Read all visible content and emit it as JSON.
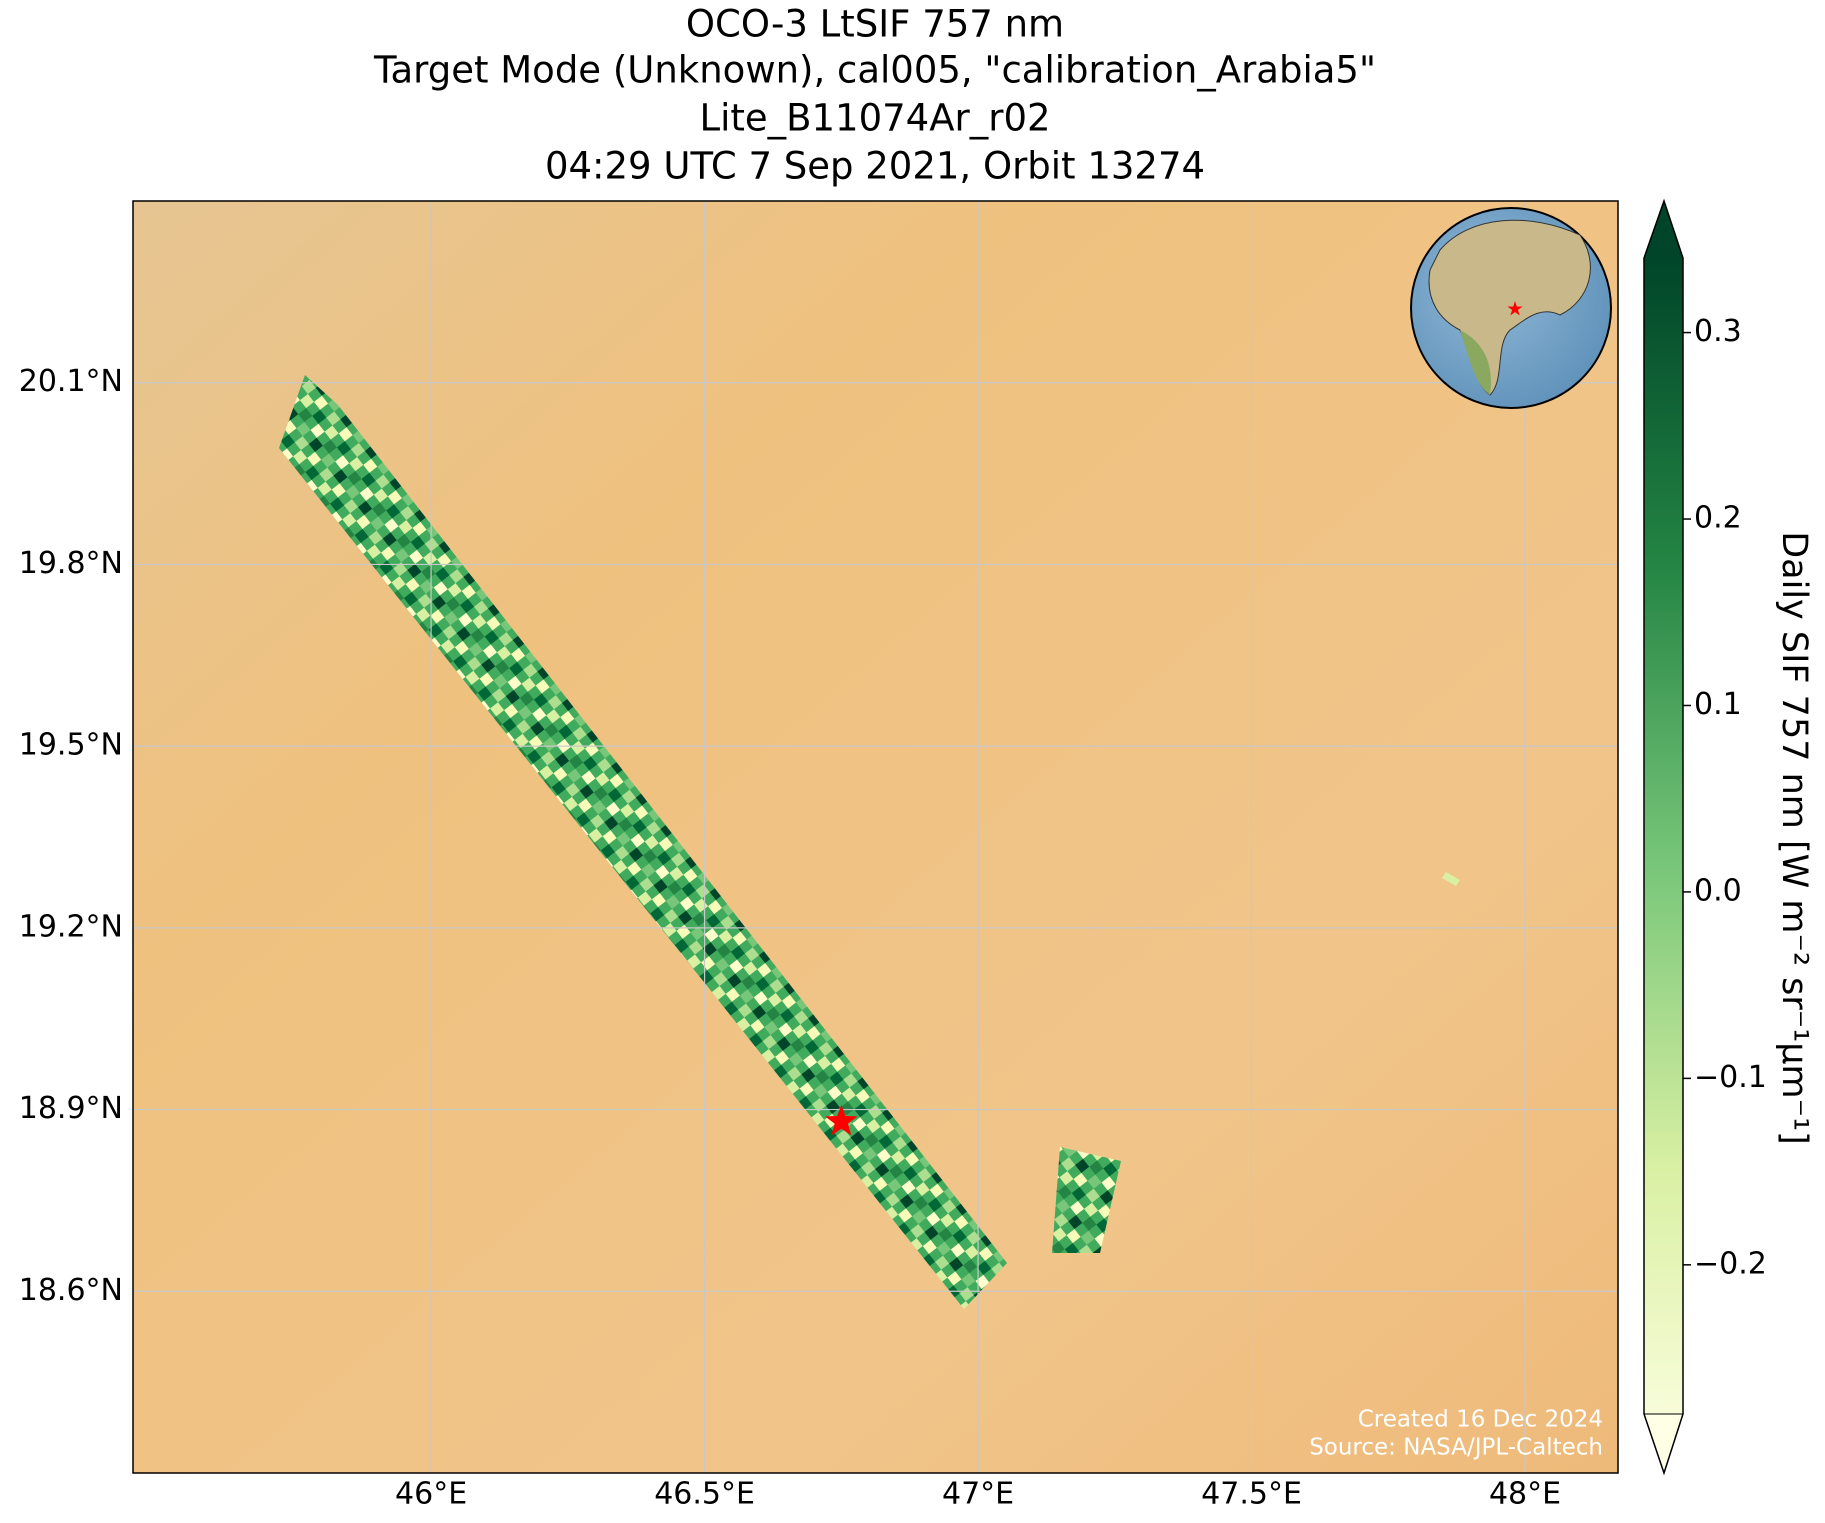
{
  "chart_data": {
    "type": "map",
    "title": [
      "OCO-3 LtSIF 757 nm",
      "Target Mode (Unknown), cal005, \"calibration_Arabia5\"",
      "Lite_B11074Ar_r02",
      "04:29 UTC 7 Sep 2021, Orbit 13274"
    ],
    "xlim": [
      45.455,
      48.17
    ],
    "ylim": [
      18.3,
      20.4
    ],
    "xticks": [
      {
        "value": 46,
        "label": "46°E"
      },
      {
        "value": 46.5,
        "label": "46.5°E"
      },
      {
        "value": 47,
        "label": "47°E"
      },
      {
        "value": 47.5,
        "label": "47.5°E"
      },
      {
        "value": 48,
        "label": "48°E"
      }
    ],
    "yticks": [
      {
        "value": 18.6,
        "label": "18.6°N"
      },
      {
        "value": 18.9,
        "label": "18.9°N"
      },
      {
        "value": 19.2,
        "label": "19.2°N"
      },
      {
        "value": 19.5,
        "label": "19.5°N"
      },
      {
        "value": 19.8,
        "label": "19.8°N"
      },
      {
        "value": 20.1,
        "label": "20.1°N"
      }
    ],
    "grid": true,
    "target": {
      "lon": 46.75,
      "lat": 18.88,
      "color": "#ff0000"
    },
    "colorbar": {
      "label": "Daily SIF 757 nm [W m⁻² sr⁻¹μm⁻¹]",
      "lim": [
        -0.28,
        0.34
      ],
      "ticks": [
        {
          "value": -0.2,
          "label": "−0.2"
        },
        {
          "value": -0.1,
          "label": "−0.1"
        },
        {
          "value": 0,
          "label": "0.0"
        },
        0.1,
        0.2,
        0.3
      ]
    },
    "credits": [
      "Created 16 Dec 2024",
      "Source: NASA/JPL-Caltech"
    ]
  }
}
